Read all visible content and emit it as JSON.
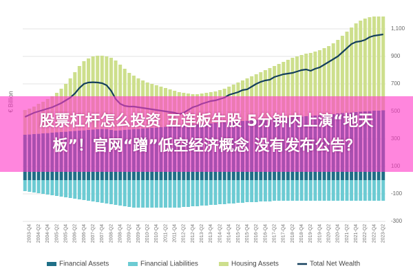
{
  "chart_data": {
    "type": "bar",
    "stacked": true,
    "y_label": "€ Billion",
    "categories": [
      null,
      "2003-Q4",
      null,
      "2004-Q2",
      null,
      "2004-Q4",
      null,
      "2005-Q2",
      null,
      "2005-Q4",
      null,
      "2006-Q2",
      null,
      "2006-Q4",
      null,
      "2007-Q2",
      null,
      "2007-Q4",
      null,
      "2008-Q2",
      null,
      "2008-Q4",
      null,
      "2009-Q2",
      null,
      "2009-Q4",
      null,
      "2010-Q2",
      null,
      "2010-Q4",
      null,
      "2011-Q2",
      null,
      "2011-Q4",
      null,
      "2012-Q2",
      null,
      "2012-Q4",
      null,
      "2013-Q2",
      null,
      "2013-Q4",
      null,
      "2014-Q2",
      null,
      "2014-Q4",
      null,
      "2015-Q2",
      null,
      "2015-Q4",
      null,
      "2016-Q2",
      null,
      "2016-Q4",
      null,
      "2017-Q2",
      null,
      "2017-Q4",
      null,
      "2018-Q2",
      null,
      "2018-Q4",
      null,
      "2019-Q2",
      null,
      "2019-Q4",
      null,
      "2020-Q2",
      null,
      "2020-Q4",
      null,
      "2021-Q2",
      null,
      "2021-Q4",
      null,
      "2022-Q2",
      null,
      "2022-Q4",
      null,
      "2023-Q2"
    ],
    "series": [
      {
        "name": "Financial Assets",
        "color": "#1f6f87",
        "type": "bar",
        "values": [
          330,
          332,
          335,
          337,
          340,
          342,
          345,
          348,
          350,
          352,
          355,
          358,
          360,
          362,
          365,
          368,
          370,
          372,
          370,
          365,
          360,
          362,
          365,
          368,
          370,
          372,
          375,
          378,
          380,
          382,
          385,
          388,
          390,
          392,
          395,
          398,
          400,
          402,
          405,
          408,
          410,
          412,
          415,
          418,
          420,
          422,
          425,
          428,
          430,
          432,
          435,
          438,
          440,
          442,
          445,
          448,
          450,
          452,
          455,
          458,
          460,
          462,
          465,
          468,
          470,
          472,
          475,
          478,
          480,
          485,
          488,
          490,
          492,
          495,
          498,
          500,
          502,
          505,
          505,
          508
        ]
      },
      {
        "name": "Financial Liabilities",
        "color": "#6ccbd3",
        "type": "bar",
        "values": [
          -80,
          -85,
          -90,
          -95,
          -100,
          -105,
          -110,
          -115,
          -120,
          -125,
          -130,
          -135,
          -140,
          -145,
          -150,
          -155,
          -160,
          -165,
          -170,
          -175,
          -180,
          -185,
          -190,
          -195,
          -200,
          -200,
          -200,
          -200,
          -200,
          -200,
          -200,
          -200,
          -200,
          -200,
          -200,
          -195,
          -195,
          -190,
          -190,
          -185,
          -185,
          -180,
          -180,
          -175,
          -175,
          -170,
          -170,
          -165,
          -165,
          -160,
          -160,
          -160,
          -155,
          -155,
          -155,
          -150,
          -150,
          -150,
          -150,
          -150,
          -150,
          -150,
          -150,
          -150,
          -150,
          -150,
          -150,
          -150,
          -150,
          -150,
          -150,
          -150,
          -150,
          -150,
          -150,
          -150,
          -150,
          -150,
          -150,
          -150
        ]
      },
      {
        "name": "Housing Assets",
        "color": "#cddf8c",
        "type": "bar",
        "values": [
          180,
          188,
          200,
          218,
          230,
          248,
          265,
          287,
          315,
          348,
          385,
          427,
          470,
          503,
          520,
          532,
          535,
          533,
          530,
          525,
          510,
          478,
          445,
          412,
          390,
          368,
          350,
          332,
          320,
          308,
          295,
          282,
          270,
          258,
          245,
          237,
          230,
          223,
          220,
          222,
          225,
          228,
          230,
          237,
          245,
          258,
          270,
          282,
          295,
          308,
          320,
          332,
          345,
          358,
          370,
          382,
          395,
          408,
          420,
          432,
          440,
          448,
          455,
          457,
          465,
          473,
          485,
          497,
          515,
          535,
          562,
          590,
          618,
          645,
          662,
          675,
          683,
          685,
          685,
          682
        ]
      },
      {
        "name": "Total Net Wealth",
        "color": "#143f5c",
        "type": "line",
        "values": [
          460,
          475,
          490,
          500,
          510,
          520,
          530,
          545,
          560,
          580,
          600,
          630,
          670,
          700,
          710,
          712,
          710,
          705,
          690,
          650,
          590,
          555,
          540,
          535,
          535,
          530,
          525,
          520,
          515,
          510,
          505,
          500,
          495,
          490,
          480,
          490,
          510,
          530,
          540,
          555,
          565,
          575,
          580,
          590,
          600,
          620,
          630,
          640,
          655,
          660,
          680,
          700,
          715,
          725,
          730,
          750,
          760,
          770,
          775,
          780,
          790,
          800,
          805,
          795,
          810,
          820,
          840,
          860,
          880,
          900,
          930,
          960,
          990,
          1005,
          1010,
          1020,
          1040,
          1050,
          1055,
          1060
        ]
      }
    ],
    "ylim": [
      -300,
      1200
    ],
    "yticks": [
      -300,
      -100,
      100,
      300,
      500,
      700,
      900,
      {
        "value": 1100,
        "label": "1,100"
      }
    ],
    "grid": true
  },
  "banner": {
    "lines": [
      "股票杠杆怎么投资 五连板牛股 5分钟内上演“地天",
      "板”！官网“蹭”低空经济概念 没有发布公告？"
    ]
  }
}
